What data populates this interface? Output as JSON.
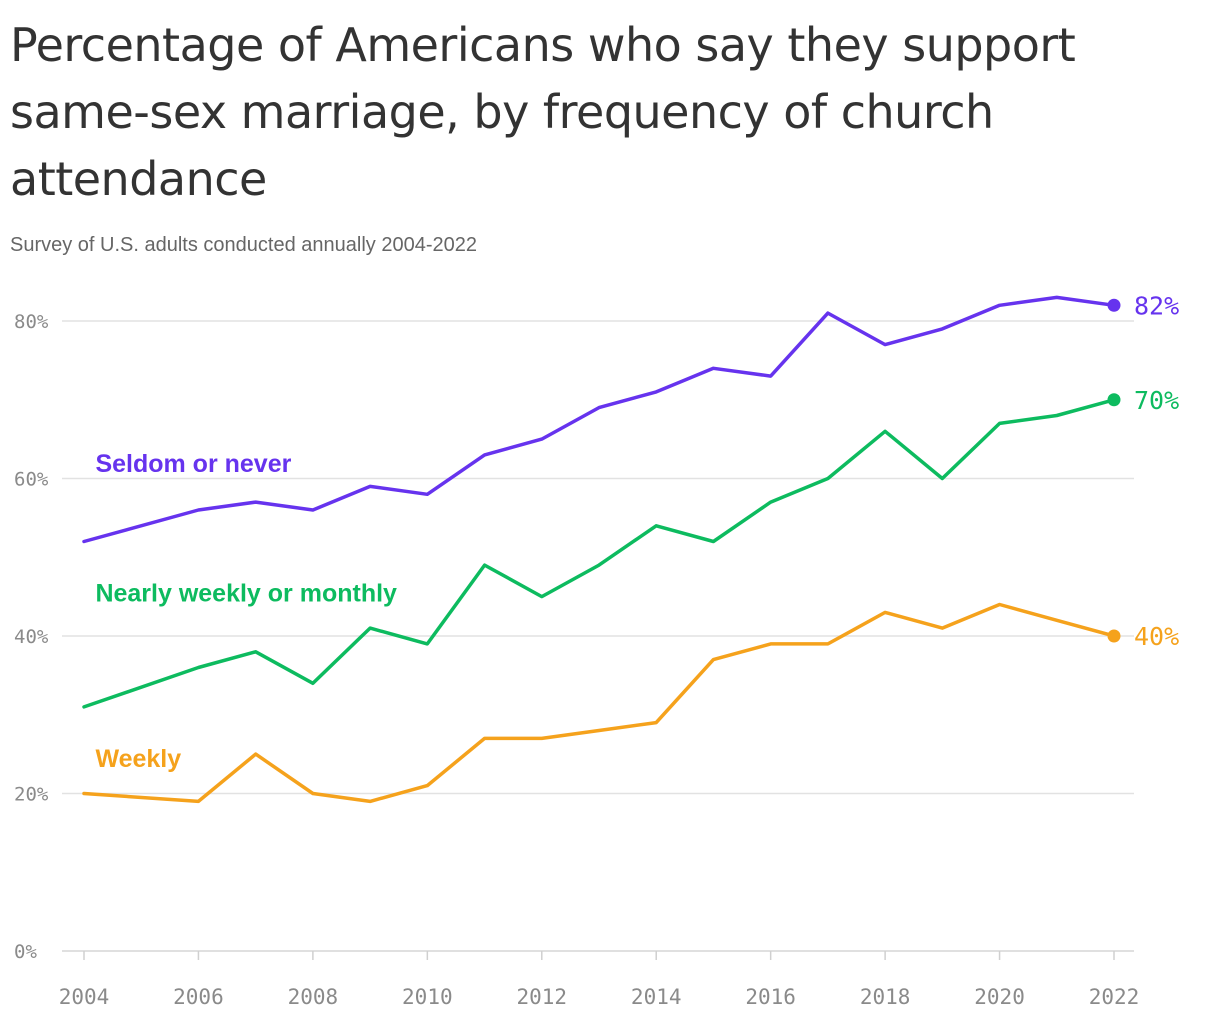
{
  "title": "Percentage of Americans who say they support same-sex marriage, by frequency of church attendance",
  "subtitle": "Survey of U.S. adults conducted annually 2004-2022",
  "chart_data": {
    "type": "line",
    "title": "Percentage of Americans who say they support same-sex marriage, by frequency of church attendance",
    "subtitle": "Survey of U.S. adults conducted annually 2004-2022",
    "xlabel": "",
    "ylabel": "",
    "x": [
      2004,
      2006,
      2007,
      2008,
      2009,
      2010,
      2011,
      2012,
      2013,
      2014,
      2015,
      2016,
      2017,
      2018,
      2019,
      2020,
      2021,
      2022
    ],
    "xlim": [
      2004,
      2022
    ],
    "ylim": [
      0,
      80
    ],
    "x_ticks": [
      2004,
      2006,
      2008,
      2010,
      2012,
      2014,
      2016,
      2018,
      2020,
      2022
    ],
    "x_tick_labels": [
      "2004",
      "2006",
      "2008",
      "2010",
      "2012",
      "2014",
      "2016",
      "2018",
      "2020",
      "2022"
    ],
    "y_ticks": [
      0,
      20,
      40,
      60,
      80
    ],
    "y_tick_labels": [
      "0%",
      "20%",
      "40%",
      "60%",
      "80%"
    ],
    "grid": true,
    "legend": "inline labels",
    "series": [
      {
        "name": "Seldom or never",
        "color": "#6633ee",
        "values": [
          52,
          56,
          57,
          56,
          59,
          58,
          63,
          65,
          69,
          71,
          74,
          73,
          81,
          77,
          79,
          82,
          83,
          82
        ],
        "end_label": "82%",
        "label_anchor": [
          2004.2,
          62
        ]
      },
      {
        "name": "Nearly weekly or monthly",
        "color": "#0dbb5f",
        "values": [
          31,
          36,
          38,
          34,
          41,
          39,
          49,
          45,
          49,
          54,
          52,
          57,
          60,
          66,
          60,
          67,
          68,
          70
        ],
        "end_label": "70%",
        "label_anchor": [
          2004.2,
          45.5
        ]
      },
      {
        "name": "Weekly",
        "color": "#f5a21c",
        "values": [
          20,
          19,
          25,
          20,
          19,
          21,
          27,
          27,
          28,
          29,
          37,
          39,
          39,
          43,
          41,
          44,
          42,
          40
        ],
        "end_label": "40%",
        "label_anchor": [
          2004.2,
          24.5
        ]
      }
    ]
  }
}
